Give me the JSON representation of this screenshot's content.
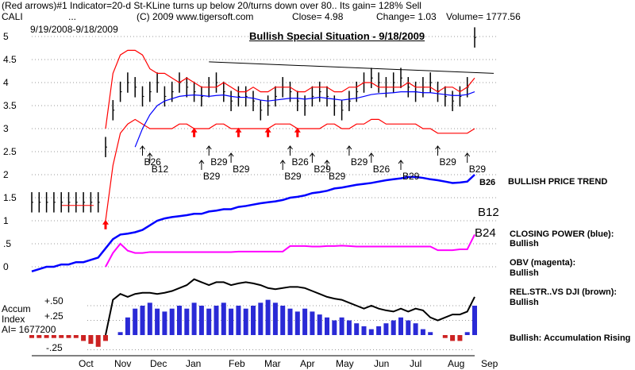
{
  "header": {
    "line1": "(Red arrows)#1 Indicator=20-d St-KLine turns up below 20/turns down over 80.. Its gain= 128% Sell",
    "ticker": "CALI",
    "ellipsis": "...",
    "copyright": "(C) 2009 www.tigersoft.com",
    "close": "Close=  4.98",
    "change": "Change= 1.03",
    "volume": "Volume= 1777.56",
    "date_range": "9/19/2008-9/18/2009"
  },
  "banner": {
    "text": "Bullish Special Situation - 9/18/2009",
    "color": "#0000cc"
  },
  "right_panel": {
    "bullish_price_trend": "BULLISH PRICE TREND",
    "b12": "B12",
    "b24": "B24",
    "b26": "B26",
    "b29": "B29",
    "closing_power": "CLOSING POWER (blue):",
    "closing_power_status": "Bullish",
    "obv": "OBV (magenta):",
    "obv_status": "Bullish",
    "relstr": "REL.STR..VS DJI (brown):",
    "relstr_status": "Bullish",
    "accum_status": "Bullish:  Accumulation Rising"
  },
  "accum_panel": {
    "title_line1": "Accum",
    "title_line2": "Index",
    "ai_value": "AI= 1677200",
    "tick_pos50": "+.50",
    "tick_pos25": "+.25",
    "tick_neg25": "-.25"
  },
  "chart_data": {
    "type": "line",
    "y_axis_ticks": [
      "5",
      "4.5",
      "4",
      "3.5",
      "3",
      "2.5",
      "2",
      "1.5",
      "1",
      ".5",
      "0"
    ],
    "ylim": [
      -0.3,
      5.1
    ],
    "x_tick_labels": [
      "Oct",
      "Nov",
      "Dec",
      "Jan",
      "Feb",
      "Mar",
      "Apr",
      "May",
      "Jun",
      "Jul",
      "Aug",
      "Sep"
    ],
    "price_close": [
      1.4,
      1.4,
      1.4,
      1.4,
      1.4,
      1.4,
      1.4,
      1.4,
      1.4,
      1.4,
      2.6,
      3.4,
      3.8,
      4.0,
      3.9,
      3.7,
      3.8,
      4.0,
      3.7,
      3.8,
      4.0,
      3.9,
      3.8,
      3.7,
      3.9,
      4.0,
      3.8,
      3.6,
      3.7,
      3.7,
      3.6,
      3.4,
      3.5,
      3.7,
      3.9,
      3.8,
      3.6,
      3.5,
      3.7,
      3.8,
      3.7,
      3.5,
      3.4,
      3.6,
      3.8,
      4.0,
      4.1,
      4.0,
      3.9,
      4.0,
      4.1,
      3.9,
      3.8,
      3.9,
      4.0,
      3.8,
      3.7,
      3.6,
      3.7,
      3.9,
      4.98
    ],
    "upper_band": [
      null,
      null,
      null,
      null,
      null,
      null,
      null,
      null,
      null,
      null,
      3.0,
      4.2,
      4.6,
      4.7,
      4.7,
      4.6,
      4.3,
      4.2,
      4.2,
      4.1,
      4.0,
      4.1,
      4.0,
      3.9,
      3.9,
      3.9,
      4.0,
      3.9,
      3.8,
      3.8,
      3.9,
      3.8,
      3.8,
      3.9,
      3.9,
      3.9,
      3.8,
      3.8,
      3.9,
      3.9,
      3.9,
      3.8,
      3.8,
      3.9,
      3.9,
      4.0,
      4.0,
      3.9,
      3.9,
      3.9,
      3.9,
      4.0,
      3.9,
      3.9,
      3.9,
      3.8,
      3.9,
      3.9,
      3.8,
      3.9,
      4.1
    ],
    "lower_band": [
      null,
      null,
      null,
      null,
      null,
      null,
      null,
      null,
      null,
      null,
      1.0,
      2.2,
      2.9,
      3.1,
      3.2,
      3.1,
      3.0,
      3.0,
      3.0,
      3.0,
      3.1,
      3.1,
      3.0,
      3.0,
      3.0,
      3.1,
      3.1,
      3.0,
      3.0,
      3.0,
      3.0,
      3.0,
      3.0,
      3.1,
      3.1,
      3.1,
      3.0,
      3.0,
      3.0,
      3.0,
      3.1,
      3.1,
      3.0,
      3.0,
      3.1,
      3.1,
      3.2,
      3.2,
      3.1,
      3.1,
      3.1,
      3.1,
      3.1,
      3.0,
      3.0,
      2.9,
      2.9,
      2.9,
      2.9,
      2.9,
      3.0
    ],
    "ma_blue": [
      null,
      null,
      null,
      null,
      null,
      null,
      null,
      null,
      null,
      null,
      null,
      null,
      null,
      null,
      2.6,
      3.0,
      3.3,
      3.5,
      3.6,
      3.65,
      3.7,
      3.72,
      3.73,
      3.72,
      3.7,
      3.72,
      3.73,
      3.7,
      3.68,
      3.68,
      3.66,
      3.62,
      3.6,
      3.62,
      3.64,
      3.66,
      3.66,
      3.64,
      3.66,
      3.68,
      3.66,
      3.64,
      3.62,
      3.64,
      3.66,
      3.7,
      3.74,
      3.76,
      3.77,
      3.78,
      3.8,
      3.8,
      3.8,
      3.78,
      3.78,
      3.76,
      3.74,
      3.72,
      3.72,
      3.74,
      3.8
    ],
    "closing_power": [
      -0.1,
      -0.05,
      0.0,
      0.0,
      0.05,
      0.05,
      0.1,
      0.1,
      0.15,
      0.2,
      0.4,
      0.6,
      0.7,
      0.72,
      0.75,
      0.8,
      0.9,
      1.0,
      1.05,
      1.08,
      1.1,
      1.12,
      1.15,
      1.15,
      1.2,
      1.22,
      1.25,
      1.25,
      1.3,
      1.32,
      1.35,
      1.38,
      1.4,
      1.42,
      1.45,
      1.5,
      1.52,
      1.55,
      1.6,
      1.62,
      1.65,
      1.7,
      1.72,
      1.75,
      1.78,
      1.8,
      1.82,
      1.85,
      1.88,
      1.9,
      1.92,
      1.95,
      1.95,
      1.93,
      1.9,
      1.88,
      1.85,
      1.82,
      1.83,
      1.85,
      2.0
    ],
    "obv": [
      null,
      null,
      null,
      null,
      null,
      null,
      null,
      null,
      null,
      null,
      0.0,
      0.3,
      0.5,
      0.35,
      0.3,
      0.3,
      0.32,
      0.32,
      0.32,
      0.32,
      0.32,
      0.32,
      0.32,
      0.32,
      0.32,
      0.32,
      0.32,
      0.32,
      0.33,
      0.33,
      0.33,
      0.33,
      0.33,
      0.33,
      0.33,
      0.45,
      0.45,
      0.45,
      0.44,
      0.44,
      0.45,
      0.45,
      0.46,
      0.45,
      0.44,
      0.44,
      0.44,
      0.44,
      0.44,
      0.44,
      0.44,
      0.44,
      0.44,
      0.44,
      0.44,
      0.36,
      0.36,
      0.36,
      0.38,
      0.38,
      0.7
    ],
    "relstr_dji": [
      null,
      null,
      null,
      null,
      null,
      null,
      null,
      null,
      null,
      null,
      0.0,
      0.6,
      0.7,
      0.65,
      0.7,
      0.72,
      0.72,
      0.7,
      0.72,
      0.75,
      0.8,
      0.85,
      0.95,
      0.9,
      0.85,
      0.9,
      0.9,
      0.85,
      0.88,
      0.9,
      0.88,
      0.85,
      0.8,
      0.78,
      0.8,
      0.82,
      0.82,
      0.8,
      0.75,
      0.7,
      0.65,
      0.62,
      0.6,
      0.55,
      0.5,
      0.45,
      0.5,
      0.45,
      0.42,
      0.4,
      0.45,
      0.4,
      0.45,
      0.42,
      0.3,
      0.25,
      0.3,
      0.35,
      0.35,
      0.4,
      0.65
    ],
    "accum_index": [
      -0.05,
      -0.05,
      -0.05,
      -0.05,
      -0.05,
      -0.05,
      -0.05,
      -0.1,
      -0.15,
      -0.2,
      -0.1,
      0.0,
      0.05,
      0.3,
      0.45,
      0.5,
      0.55,
      0.45,
      0.4,
      0.45,
      0.5,
      0.45,
      0.55,
      0.5,
      0.45,
      0.5,
      0.55,
      0.45,
      0.5,
      0.45,
      0.5,
      0.55,
      0.6,
      0.55,
      0.5,
      0.45,
      0.4,
      0.45,
      0.4,
      0.35,
      0.3,
      0.25,
      0.3,
      0.25,
      0.2,
      0.15,
      0.1,
      0.15,
      0.2,
      0.25,
      0.3,
      0.25,
      0.2,
      0.1,
      0.05,
      0.0,
      -0.05,
      -0.1,
      -0.1,
      0.05,
      0.5
    ],
    "resistance_line": [
      {
        "x": 24,
        "y": 4.45
      },
      {
        "x": 60,
        "y": 4.2
      }
    ],
    "breakout_level": 1.4,
    "red_arrow_signals": [
      10,
      22,
      28,
      32,
      36
    ],
    "buy_signals": [
      {
        "label": "B26",
        "x": 15
      },
      {
        "label": "B12",
        "x": 16
      },
      {
        "label": "B29",
        "x": 23
      },
      {
        "label": "B29",
        "x": 24
      },
      {
        "label": "B29",
        "x": 27
      },
      {
        "label": "B29",
        "x": 34
      },
      {
        "label": "B26",
        "x": 35
      },
      {
        "label": "B29",
        "x": 38
      },
      {
        "label": "B29",
        "x": 40
      },
      {
        "label": "B29",
        "x": 43
      },
      {
        "label": "B26",
        "x": 46
      },
      {
        "label": "B29",
        "x": 50
      },
      {
        "label": "B29",
        "x": 55
      },
      {
        "label": "B29",
        "x": 59
      }
    ],
    "series": [
      {
        "name": "CLOSING POWER (blue)",
        "color": "#0000ff"
      },
      {
        "name": "OBV (magenta)",
        "color": "#ff00ff"
      },
      {
        "name": "REL.STR..VS DJI (brown)",
        "color": "#8b4513"
      }
    ],
    "grid": true
  }
}
